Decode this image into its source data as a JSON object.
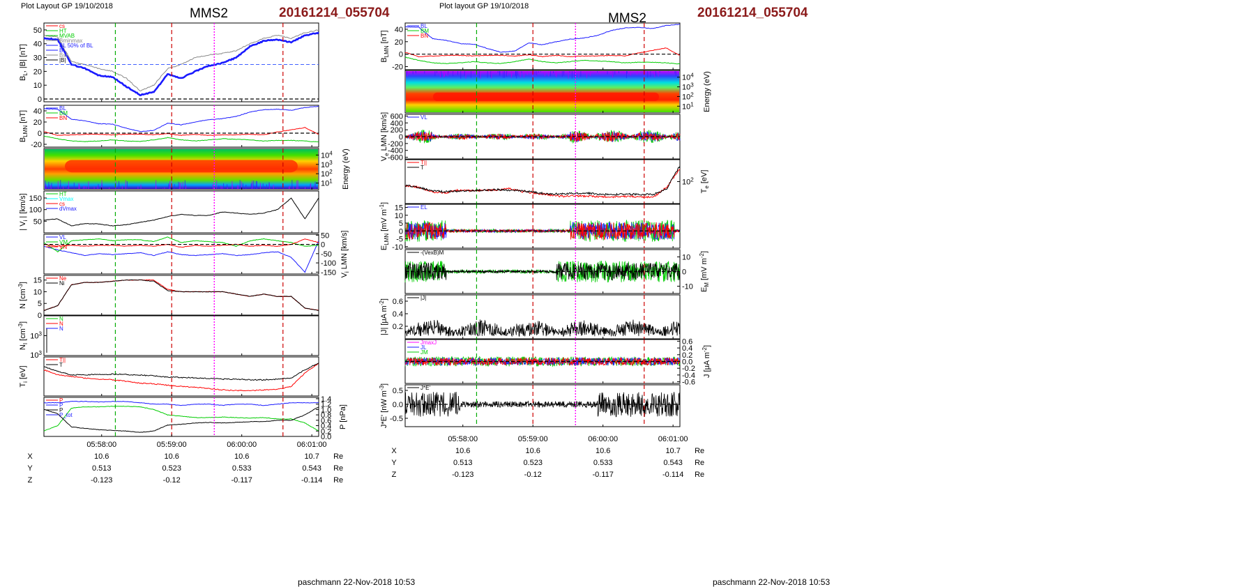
{
  "header": {
    "plot_layout_left": "Plot Layout GP 19/10/2018",
    "plot_layout_right": "Plot layout GP 19/10/2018",
    "spacecraft": "MMS2",
    "event_id": "20161214_055704"
  },
  "footer": {
    "signature": "paschmann 22-Nov-2018 10:53"
  },
  "time_axis": {
    "ticks": [
      "05:58:00",
      "05:59:00",
      "06:00:00",
      "06:01:00"
    ],
    "ephemeris": [
      {
        "name": "X",
        "values": [
          "10.6",
          "10.6",
          "10.6",
          "10.7"
        ],
        "unit": "Re"
      },
      {
        "name": "Y",
        "values": [
          "0.513",
          "0.523",
          "0.533",
          "0.543"
        ],
        "unit": "Re"
      },
      {
        "name": "Z",
        "values": [
          "-0.123",
          "-0.12",
          "-0.117",
          "-0.114"
        ],
        "unit": "Re"
      }
    ]
  },
  "colors": {
    "blue": "#1a1aff",
    "red": "#ff0000",
    "green": "#00cc00",
    "black": "#000000",
    "magenta": "#ff00ff",
    "grey": "#888888",
    "event": "#8b1a1a"
  },
  "chart_data": [
    {
      "type": "line",
      "panel": "left-1",
      "ylabel": "B_L, |B| [nT]",
      "yticks": [
        "50",
        "40",
        "30",
        "20",
        "10",
        "0"
      ],
      "ylim": [
        -2,
        55
      ],
      "legend": [
        "cs",
        "HT",
        "MVAB",
        "Bminmax",
        "BL 50% of BL",
        "BL",
        "Bst",
        "|B|"
      ],
      "series": [
        {
          "name": "B_L",
          "color": "blue",
          "values": [
            44,
            43,
            25,
            22,
            17,
            16,
            9,
            3,
            5,
            18,
            15,
            20,
            24,
            26,
            30,
            38,
            42,
            43,
            41,
            46,
            48
          ]
        },
        {
          "name": "|B|",
          "color": "grey",
          "values": [
            46,
            45,
            27,
            25,
            22,
            20,
            15,
            6,
            10,
            22,
            25,
            30,
            32,
            33,
            35,
            40,
            44,
            46,
            44,
            48,
            50
          ]
        }
      ]
    },
    {
      "type": "line",
      "panel": "left-2",
      "ylabel": "B_LMN [nT]",
      "yticks": [
        "40",
        "20",
        "0",
        "-20"
      ],
      "ylim": [
        -25,
        50
      ],
      "legend": [
        "BL",
        "BM",
        "BN"
      ],
      "series": [
        {
          "name": "B_L",
          "color": "blue",
          "values": [
            44,
            43,
            25,
            22,
            17,
            16,
            9,
            3,
            5,
            18,
            15,
            20,
            24,
            26,
            30,
            38,
            42,
            43,
            41,
            46,
            48
          ]
        },
        {
          "name": "B_M",
          "color": "green",
          "values": [
            -5,
            -10,
            -14,
            -15,
            -14,
            -12,
            -14,
            -15,
            -12,
            -8,
            -12,
            -14,
            -12,
            -10,
            -11,
            -12,
            -14,
            -13,
            -13,
            -14,
            -16
          ]
        },
        {
          "name": "B_N",
          "color": "red",
          "values": [
            3,
            -4,
            -3,
            -2,
            -2,
            -3,
            -2,
            -2,
            -3,
            -1,
            -4,
            -2,
            -4,
            -3,
            -3,
            -2,
            -3,
            2,
            6,
            10,
            -2
          ]
        }
      ]
    },
    {
      "type": "heatmap",
      "panel": "left-3",
      "ylabel": "Energy (eV)",
      "yticks": [
        "10^4",
        "10^3",
        "10^2",
        "10^1"
      ]
    },
    {
      "type": "line",
      "panel": "left-4",
      "ylabel": "| V_i | [km/s]",
      "yticks": [
        "150",
        "100",
        "50"
      ],
      "ylim": [
        0,
        180
      ],
      "legend": [
        "HT",
        "Vmax",
        "cs",
        "dVmax"
      ],
      "series": [
        {
          "name": "|Vi|",
          "color": "black",
          "values": [
            55,
            60,
            30,
            40,
            38,
            30,
            35,
            45,
            55,
            70,
            80,
            75,
            75,
            90,
            85,
            80,
            85,
            100,
            150,
            60,
            150
          ]
        }
      ]
    },
    {
      "type": "line",
      "panel": "left-5",
      "ylabel": "V_i LMN [km/s]",
      "yticks": [
        "50",
        "0",
        "-50",
        "-100",
        "-150"
      ],
      "ylim": [
        -160,
        55
      ],
      "legend": [
        "VL",
        "VM",
        "VN"
      ],
      "series": [
        {
          "name": "V_L",
          "color": "blue",
          "values": [
            -10,
            -30,
            -45,
            -60,
            -50,
            -55,
            -50,
            -45,
            -60,
            -40,
            -55,
            -60,
            -55,
            -50,
            -60,
            -55,
            -45,
            -40,
            -70,
            -150,
            20
          ]
        },
        {
          "name": "V_M",
          "color": "green",
          "values": [
            10,
            -40,
            20,
            25,
            30,
            20,
            25,
            25,
            15,
            40,
            10,
            20,
            15,
            10,
            -10,
            20,
            30,
            20,
            10,
            -10,
            -5
          ]
        },
        {
          "name": "V_N",
          "color": "red",
          "values": [
            0,
            -10,
            -5,
            -10,
            -5,
            -5,
            -10,
            -5,
            -10,
            0,
            -15,
            -5,
            -10,
            -5,
            0,
            -10,
            -5,
            -10,
            0,
            30,
            10
          ]
        }
      ]
    },
    {
      "type": "line",
      "panel": "left-6",
      "ylabel": "N [cm^-3]",
      "yticks": [
        "15",
        "10",
        "5",
        "0"
      ],
      "ylim": [
        0,
        17
      ],
      "legend": [
        "Ne",
        "Ni"
      ],
      "series": [
        {
          "name": "Ne",
          "color": "red",
          "values": [
            2,
            4,
            13,
            14,
            14,
            14.5,
            15,
            15,
            15,
            11,
            10,
            10,
            10,
            10,
            9,
            8,
            9,
            8,
            8,
            3,
            2
          ]
        },
        {
          "name": "Ni",
          "color": "black",
          "values": [
            2,
            4,
            13,
            14,
            14,
            14.5,
            15,
            15,
            14.5,
            10.5,
            10,
            10,
            10,
            10,
            9,
            8,
            9,
            8,
            8,
            3,
            2
          ]
        }
      ]
    },
    {
      "type": "line",
      "panel": "left-7",
      "ylabel": "N_I [cm^-3]",
      "yticks": [
        "10^3"
      ],
      "legend": [
        "N",
        "N",
        "N"
      ]
    },
    {
      "type": "line",
      "panel": "left-8",
      "ylabel": "T_i [eV]",
      "legend": [
        "T||",
        "T"
      ],
      "series": [
        {
          "name": "T_par",
          "color": "red",
          "values": [
            70,
            55,
            50,
            45,
            42,
            40,
            36,
            30,
            28,
            24,
            20,
            18,
            14,
            10,
            8,
            8,
            10,
            12,
            20,
            60,
            90
          ]
        },
        {
          "name": "T_perp",
          "color": "black",
          "values": [
            80,
            65,
            55,
            55,
            56,
            57,
            56,
            54,
            52,
            48,
            47,
            46,
            44,
            42,
            42,
            40,
            40,
            42,
            45,
            70,
            90
          ]
        }
      ]
    },
    {
      "type": "line",
      "panel": "left-9",
      "ylabel": "P [nPa]",
      "yticks": [
        "1.4",
        "1.2",
        "1.0",
        "0.8",
        "0.6",
        "0.4",
        "0.2",
        "0.0"
      ],
      "ylim": [
        0,
        1.45
      ],
      "legend": [
        "P",
        "P",
        "P",
        "P_tot"
      ],
      "series": [
        {
          "name": "P_tot",
          "color": "blue",
          "values": [
            1.25,
            1.25,
            1.3,
            1.3,
            1.28,
            1.3,
            1.3,
            1.25,
            1.2,
            1.2,
            1.15,
            1.2,
            1.2,
            1.15,
            1.2,
            1.2,
            1.15,
            1.2,
            1.25,
            1.25,
            1.25
          ]
        },
        {
          "name": "P_th",
          "color": "green",
          "values": [
            0.2,
            0.4,
            1.05,
            1.1,
            1.1,
            1.12,
            1.12,
            1.1,
            1.0,
            0.8,
            0.75,
            0.7,
            0.7,
            0.72,
            0.7,
            0.68,
            0.7,
            0.65,
            0.65,
            0.5,
            0.2
          ]
        },
        {
          "name": "P_B",
          "color": "black",
          "values": [
            1.0,
            0.85,
            0.35,
            0.3,
            0.25,
            0.22,
            0.2,
            0.15,
            0.2,
            0.42,
            0.45,
            0.5,
            0.52,
            0.5,
            0.52,
            0.55,
            0.55,
            0.6,
            0.6,
            0.8,
            1.1
          ]
        }
      ]
    },
    {
      "type": "line",
      "panel": "right-1",
      "ylabel": "B_LMN [nT]",
      "yticks": [
        "40",
        "20",
        "0",
        "-20"
      ],
      "ylim": [
        -25,
        50
      ],
      "legend": [
        "BL",
        "BM",
        "BN"
      ],
      "series": [
        {
          "name": "B_L",
          "color": "blue",
          "values": [
            44,
            43,
            25,
            22,
            17,
            16,
            9,
            3,
            5,
            18,
            15,
            20,
            24,
            26,
            30,
            38,
            42,
            43,
            41,
            46,
            48
          ]
        },
        {
          "name": "B_M",
          "color": "green",
          "values": [
            -5,
            -10,
            -14,
            -15,
            -14,
            -12,
            -14,
            -15,
            -12,
            -8,
            -12,
            -14,
            -12,
            -10,
            -11,
            -12,
            -14,
            -13,
            -13,
            -14,
            -16
          ]
        },
        {
          "name": "B_N",
          "color": "red",
          "values": [
            3,
            -4,
            -3,
            -2,
            -2,
            -3,
            -2,
            -2,
            -3,
            -1,
            -4,
            -2,
            -4,
            -3,
            -3,
            -2,
            -3,
            2,
            6,
            10,
            -2
          ]
        }
      ]
    },
    {
      "type": "heatmap",
      "panel": "right-2",
      "ylabel": "Energy (eV)",
      "yticks": [
        "10^4",
        "10^3",
        "10^2",
        "10^1"
      ]
    },
    {
      "type": "line",
      "panel": "right-3",
      "ylabel": "V_e LMN [km/s]",
      "yticks": [
        "600",
        "400",
        "200",
        "0",
        "-200",
        "-400",
        "-600"
      ],
      "ylim": [
        -650,
        650
      ],
      "legend": [
        "VL"
      ]
    },
    {
      "type": "line",
      "panel": "right-4",
      "ylabel": "T_e [eV]",
      "yticks": [
        "10^2"
      ],
      "legend": [
        "T||",
        "T"
      ],
      "series": [
        {
          "name": "T_par",
          "color": "red",
          "values": [
            45,
            40,
            25,
            20,
            30,
            28,
            30,
            30,
            35,
            25,
            20,
            15,
            10,
            12,
            10,
            8,
            8,
            10,
            8,
            8,
            40,
            100
          ]
        },
        {
          "name": "T_perp",
          "color": "black",
          "values": [
            45,
            40,
            28,
            25,
            27,
            28,
            30,
            32,
            30,
            28,
            22,
            18,
            18,
            20,
            20,
            16,
            16,
            17,
            16,
            16,
            35,
            110
          ]
        }
      ]
    },
    {
      "type": "line",
      "panel": "right-5",
      "ylabel": "E_LMN [mV m^-1]",
      "yticks": [
        "15",
        "10",
        "5",
        "0",
        "-5",
        "-10"
      ],
      "ylim": [
        -11,
        17
      ],
      "legend": [
        "EL"
      ]
    },
    {
      "type": "line",
      "panel": "right-6",
      "ylabel": "E_M [mV m^-2]",
      "yticks": [
        "10",
        "0",
        "-10"
      ],
      "ylim": [
        -15,
        15
      ],
      "legend": [
        "-(VexB)M"
      ]
    },
    {
      "type": "line",
      "panel": "right-7",
      "ylabel": "|J| [μA m^-2]",
      "yticks": [
        "0.6",
        "0.4",
        "0.2"
      ],
      "ylim": [
        0,
        0.7
      ],
      "legend": [
        "|J|"
      ]
    },
    {
      "type": "line",
      "panel": "right-8",
      "ylabel": "J [μA m^-2]",
      "yticks": [
        "0.6",
        "0.4",
        "0.2",
        "0.0",
        "-0.2",
        "-0.4",
        "-0.6"
      ],
      "ylim": [
        -0.65,
        0.65
      ],
      "legend": [
        "JmaxJ",
        "JL",
        "JM"
      ]
    },
    {
      "type": "line",
      "panel": "right-9",
      "ylabel": "J*E' [nW m^-3]",
      "yticks": [
        "0.5",
        "0.0",
        "-0.5"
      ],
      "ylim": [
        -0.8,
        0.7
      ],
      "legend": [
        "J*E'"
      ]
    }
  ]
}
